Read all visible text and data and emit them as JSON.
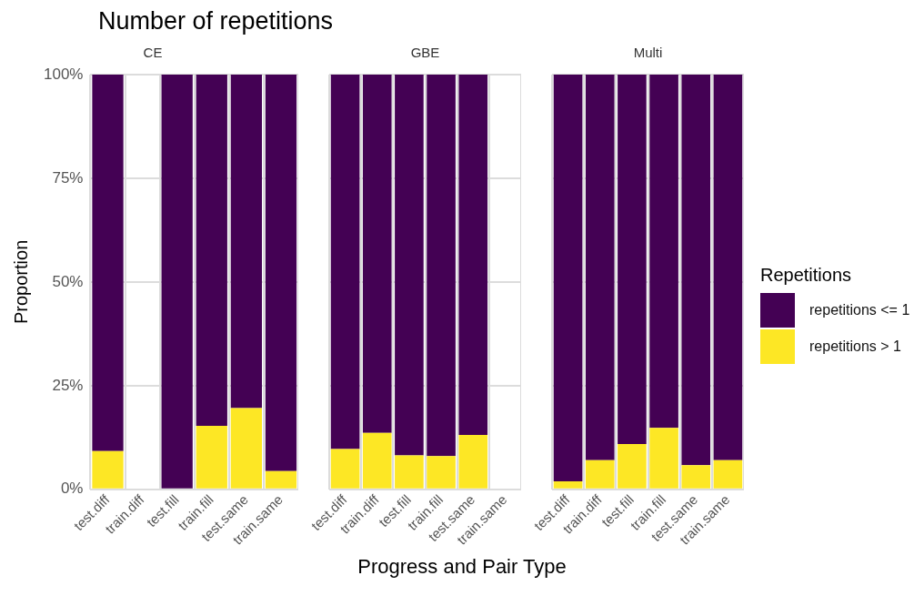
{
  "chart_data": [
    {
      "type": "bar",
      "title": "Number of repetitions",
      "subtitle": "CE",
      "ylabel": "Proportion",
      "categories": [
        "test.diff",
        "train.diff",
        "test.fill",
        "train.fill",
        "test.same",
        "train.same"
      ],
      "stacked": true,
      "ylim": [
        0,
        100
      ],
      "yticks": [
        {
          "value": 0,
          "label": "0%"
        },
        {
          "value": 25,
          "label": "25%"
        },
        {
          "value": 50,
          "label": "50%"
        },
        {
          "value": 75,
          "label": "75%"
        },
        {
          "value": 100,
          "label": "100%"
        }
      ],
      "grid": true,
      "series": [
        {
          "color": "#fde725",
          "values": [
            9.2,
            null,
            0,
            15.3,
            19.6,
            4.4
          ]
        },
        {
          "color": "#440154",
          "values": [
            90.8,
            null,
            100,
            84.7,
            80.4,
            95.6
          ]
        }
      ]
    },
    {
      "type": "bar",
      "subtitle": "GBE",
      "xlabel": "Progress and Pair Type",
      "categories": [
        "test.diff",
        "train.diff",
        "test.fill",
        "train.fill",
        "test.same",
        "train.same"
      ],
      "stacked": true,
      "ylim": [
        0,
        100
      ],
      "yticks": [
        {
          "value": 0,
          "label": null
        },
        {
          "value": 25,
          "label": null
        },
        {
          "value": 50,
          "label": null
        },
        {
          "value": 75,
          "label": null
        },
        {
          "value": 100,
          "label": null
        }
      ],
      "grid": true,
      "tick_labels": "x",
      "series": [
        {
          "color": "#fde725",
          "values": [
            9.7,
            13.6,
            8.2,
            8.0,
            13.1,
            null
          ]
        },
        {
          "color": "#440154",
          "values": [
            90.3,
            86.4,
            91.8,
            92.0,
            86.9,
            null
          ]
        }
      ]
    },
    {
      "type": "bar",
      "subtitle": "Multi",
      "legend_title": "Repetitions",
      "legend": "right",
      "categories": [
        "test.diff",
        "train.diff",
        "test.fill",
        "train.fill",
        "test.same",
        "train.same"
      ],
      "stacked": true,
      "ylim": [
        0,
        100
      ],
      "yticks": [
        {
          "value": 0,
          "label": null
        },
        {
          "value": 25,
          "label": null
        },
        {
          "value": 50,
          "label": null
        },
        {
          "value": 75,
          "label": null
        },
        {
          "value": 100,
          "label": null
        }
      ],
      "grid": true,
      "tick_labels": "x",
      "series": [
        {
          "name": "repetitions > 1",
          "color": "#fde725",
          "values": [
            1.9,
            7.0,
            10.9,
            14.8,
            5.8,
            7.0
          ]
        },
        {
          "name": "repetitions <= 1",
          "color": "#440154",
          "values": [
            98.1,
            93.0,
            89.1,
            85.2,
            94.2,
            93.0
          ]
        }
      ]
    }
  ]
}
